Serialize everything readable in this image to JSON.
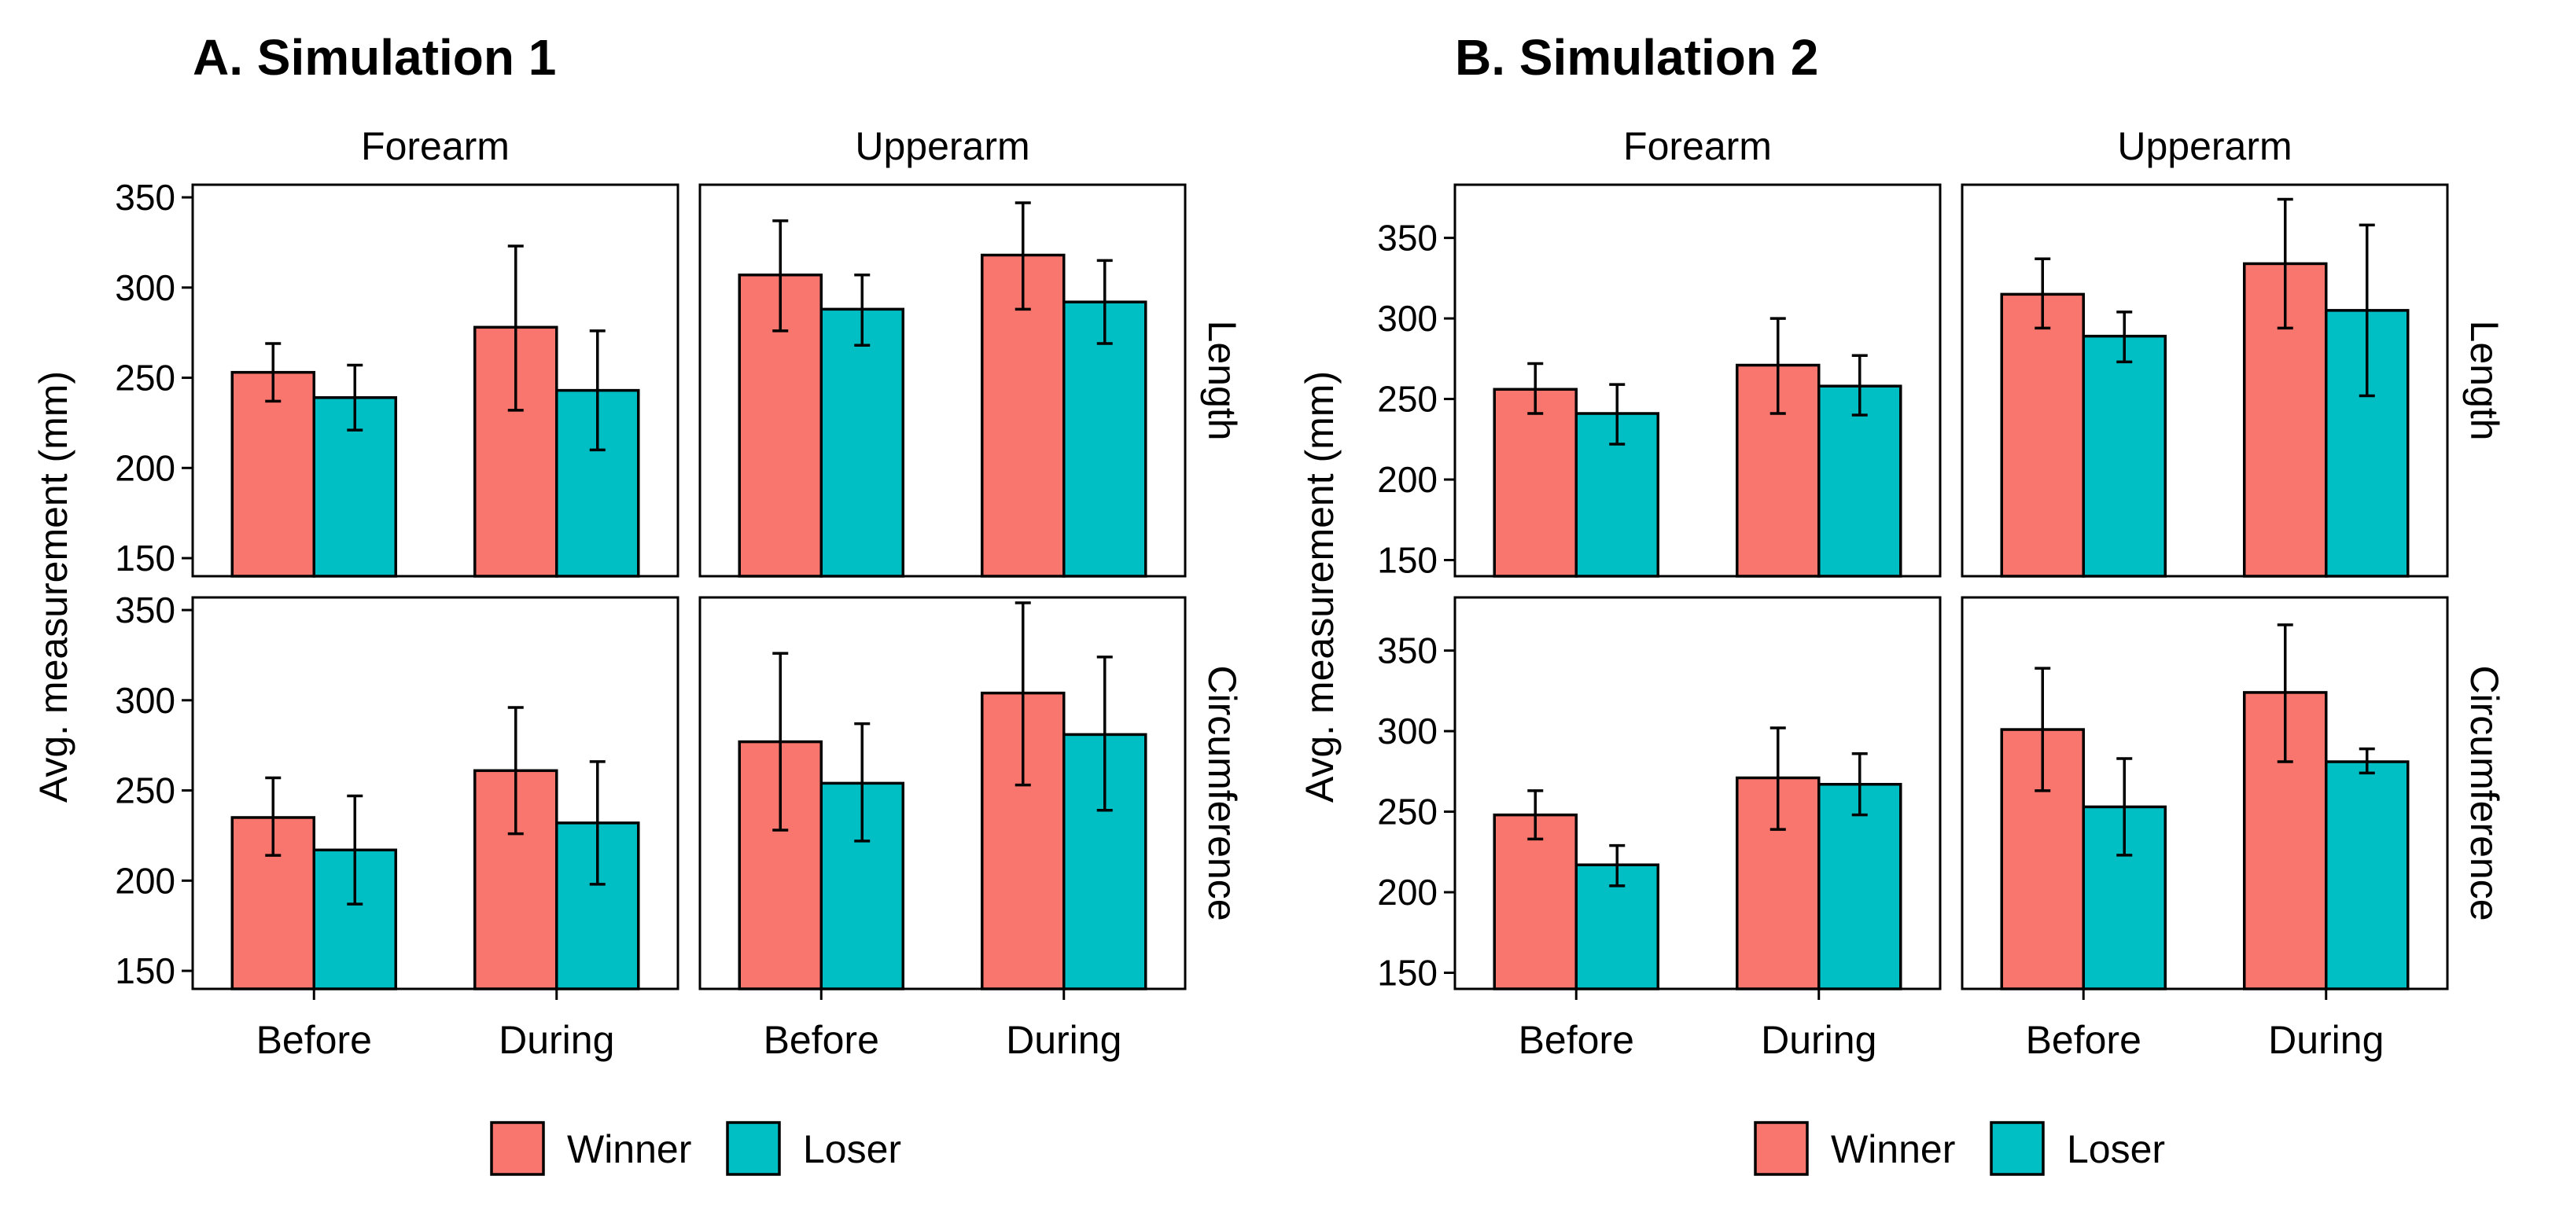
{
  "chart_data": [
    {
      "type": "bar",
      "title": "A. Simulation 1",
      "ylabel": "Avg. measurement (mm)",
      "columns": [
        "Forearm",
        "Upperarm"
      ],
      "rows": [
        "Length",
        "Circumference"
      ],
      "categories": [
        "Before",
        "During"
      ],
      "legend": {
        "entries": [
          "Winner",
          "Loser"
        ],
        "position": "bottom"
      },
      "colors": {
        "Winner": "#F8766D",
        "Loser": "#00BFC4"
      },
      "ylim": [
        140,
        357
      ],
      "yticks": [
        150,
        200,
        250,
        300,
        350
      ],
      "panels": [
        {
          "row": "Length",
          "column": "Forearm",
          "series": [
            {
              "name": "Winner",
              "values": [
                253,
                278
              ],
              "err_low": [
                237,
                232
              ],
              "err_high": [
                269,
                323
              ]
            },
            {
              "name": "Loser",
              "values": [
                239,
                243
              ],
              "err_low": [
                221,
                210
              ],
              "err_high": [
                257,
                276
              ]
            }
          ]
        },
        {
          "row": "Length",
          "column": "Upperarm",
          "series": [
            {
              "name": "Winner",
              "values": [
                307,
                318
              ],
              "err_low": [
                276,
                288
              ],
              "err_high": [
                337,
                347
              ]
            },
            {
              "name": "Loser",
              "values": [
                288,
                292
              ],
              "err_low": [
                268,
                269
              ],
              "err_high": [
                307,
                315
              ]
            }
          ]
        },
        {
          "row": "Circumference",
          "column": "Forearm",
          "series": [
            {
              "name": "Winner",
              "values": [
                235,
                261
              ],
              "err_low": [
                214,
                226
              ],
              "err_high": [
                257,
                296
              ]
            },
            {
              "name": "Loser",
              "values": [
                217,
                232
              ],
              "err_low": [
                187,
                198
              ],
              "err_high": [
                247,
                266
              ]
            }
          ]
        },
        {
          "row": "Circumference",
          "column": "Upperarm",
          "series": [
            {
              "name": "Winner",
              "values": [
                277,
                304
              ],
              "err_low": [
                228,
                253
              ],
              "err_high": [
                326,
                354
              ]
            },
            {
              "name": "Loser",
              "values": [
                254,
                281
              ],
              "err_low": [
                222,
                239
              ],
              "err_high": [
                287,
                324
              ]
            }
          ]
        }
      ]
    },
    {
      "type": "bar",
      "title": "B. Simulation 2",
      "ylabel": "Avg. measurement (mm)",
      "columns": [
        "Forearm",
        "Upperarm"
      ],
      "rows": [
        "Length",
        "Circumference"
      ],
      "categories": [
        "Before",
        "During"
      ],
      "legend": {
        "entries": [
          "Winner",
          "Loser"
        ],
        "position": "bottom"
      },
      "colors": {
        "Winner": "#F8766D",
        "Loser": "#00BFC4"
      },
      "ylim": [
        140,
        383
      ],
      "yticks": [
        150,
        200,
        250,
        300,
        350
      ],
      "panels": [
        {
          "row": "Length",
          "column": "Forearm",
          "series": [
            {
              "name": "Winner",
              "values": [
                256,
                271
              ],
              "err_low": [
                241,
                241
              ],
              "err_high": [
                272,
                300
              ]
            },
            {
              "name": "Loser",
              "values": [
                241,
                258
              ],
              "err_low": [
                222,
                240
              ],
              "err_high": [
                259,
                277
              ]
            }
          ]
        },
        {
          "row": "Length",
          "column": "Upperarm",
          "series": [
            {
              "name": "Winner",
              "values": [
                315,
                334
              ],
              "err_low": [
                294,
                294
              ],
              "err_high": [
                337,
                374
              ]
            },
            {
              "name": "Loser",
              "values": [
                289,
                305
              ],
              "err_low": [
                273,
                252
              ],
              "err_high": [
                304,
                358
              ]
            }
          ]
        },
        {
          "row": "Circumference",
          "column": "Forearm",
          "series": [
            {
              "name": "Winner",
              "values": [
                248,
                271
              ],
              "err_low": [
                233,
                239
              ],
              "err_high": [
                263,
                302
              ]
            },
            {
              "name": "Loser",
              "values": [
                217,
                267
              ],
              "err_low": [
                204,
                248
              ],
              "err_high": [
                229,
                286
              ]
            }
          ]
        },
        {
          "row": "Circumference",
          "column": "Upperarm",
          "series": [
            {
              "name": "Winner",
              "values": [
                301,
                324
              ],
              "err_low": [
                263,
                281
              ],
              "err_high": [
                339,
                366
              ]
            },
            {
              "name": "Loser",
              "values": [
                253,
                281
              ],
              "err_low": [
                223,
                274
              ],
              "err_high": [
                283,
                289
              ]
            }
          ]
        }
      ]
    }
  ]
}
